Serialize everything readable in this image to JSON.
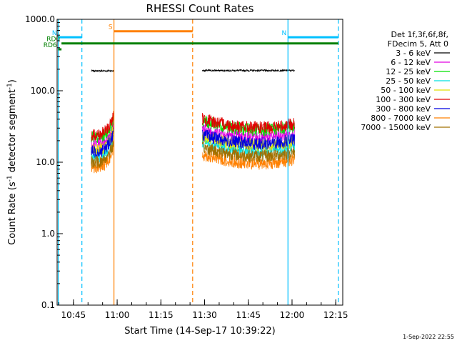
{
  "chart_data": {
    "type": "line",
    "title": "RHESSI Count Rates",
    "xlabel": "Start Time (14-Sep-17 10:39:22)",
    "ylabel_parts": [
      "Count Rate (s",
      "-1",
      " detector segment",
      "-1",
      ")"
    ],
    "yscale": "log",
    "ylim": [
      0.1,
      1000
    ],
    "xlim_minutes": [
      0,
      98
    ],
    "x_ticks": [
      {
        "label": "10:45",
        "min": 5.6
      },
      {
        "label": "11:00",
        "min": 20.6
      },
      {
        "label": "11:15",
        "min": 35.6
      },
      {
        "label": "11:30",
        "min": 50.6
      },
      {
        "label": "11:45",
        "min": 65.6
      },
      {
        "label": "12:00",
        "min": 80.6
      },
      {
        "label": "12:15",
        "min": 95.6
      }
    ],
    "y_ticks": [
      {
        "label": "1000.0",
        "v": 1000
      },
      {
        "label": "100.0",
        "v": 100
      },
      {
        "label": "10.0",
        "v": 10
      },
      {
        "label": "1.0",
        "v": 1
      },
      {
        "label": "0.1",
        "v": 0.1
      }
    ],
    "legend_header": [
      "Det 1f,3f,6f,8f,",
      "FDecim 5, Att 0"
    ],
    "series": [
      {
        "name": "3 - 6 keV",
        "color": "#000000",
        "v1": 190,
        "v2": 192
      },
      {
        "name": "6 - 12 keV",
        "color": "#e000e0",
        "v1": 18,
        "v2": 22
      },
      {
        "name": "12 - 25 keV",
        "color": "#00e000",
        "v1": 22,
        "v2": 28
      },
      {
        "name": "25 - 50 keV",
        "color": "#00e0e0",
        "v1": 12,
        "v2": 14
      },
      {
        "name": "50 - 100 keV",
        "color": "#e0e000",
        "v1": 15,
        "v2": 17
      },
      {
        "name": "100 - 300 keV",
        "color": "#e00000",
        "v1": 24,
        "v2": 30
      },
      {
        "name": "300 - 800 keV",
        "color": "#0000e0",
        "v1": 14,
        "v2": 18
      },
      {
        "name": "800 - 7000 keV",
        "color": "#ff8000",
        "v1": 8.5,
        "v2": 9.5
      },
      {
        "name": "7000 - 15000 keV",
        "color": "#a07000",
        "v1": 10,
        "v2": 12
      }
    ],
    "intervals": [
      {
        "start_min": 11.7,
        "end_min": 19.5
      },
      {
        "start_min": 49.8,
        "end_min": 81.5
      }
    ],
    "markers": [
      {
        "min": 0.4,
        "color": "#00c0ff",
        "style": "solid"
      },
      {
        "min": 8.5,
        "color": "#00c0ff",
        "style": "dashed"
      },
      {
        "min": 19.5,
        "color": "#ff8000",
        "style": "solid"
      },
      {
        "min": 46.5,
        "color": "#ff8000",
        "style": "dashed"
      },
      {
        "min": 79.2,
        "color": "#00c0ff",
        "style": "solid"
      },
      {
        "min": 96.5,
        "color": "#00c0ff",
        "style": "dashed"
      }
    ],
    "flags": [
      {
        "label": "S",
        "color": "#ff8000",
        "start_min": 19.5,
        "end_min": 46.5,
        "v": 680
      },
      {
        "label": "N",
        "color": "#00c0ff",
        "start_min": 0.4,
        "end_min": 8.5,
        "v": 560
      },
      {
        "label": "N",
        "color": "#00c0ff",
        "start_min": 79.2,
        "end_min": 96.5,
        "v": 560
      },
      {
        "label": "RD0",
        "color": "#008000",
        "start_min": 1.5,
        "end_min": 96.5,
        "v": 460
      },
      {
        "label": "RD6",
        "color": "#008000",
        "start_min": 0.4,
        "end_min": 1.5,
        "v": 380
      }
    ],
    "footer": "1-Sep-2022 22:55"
  }
}
